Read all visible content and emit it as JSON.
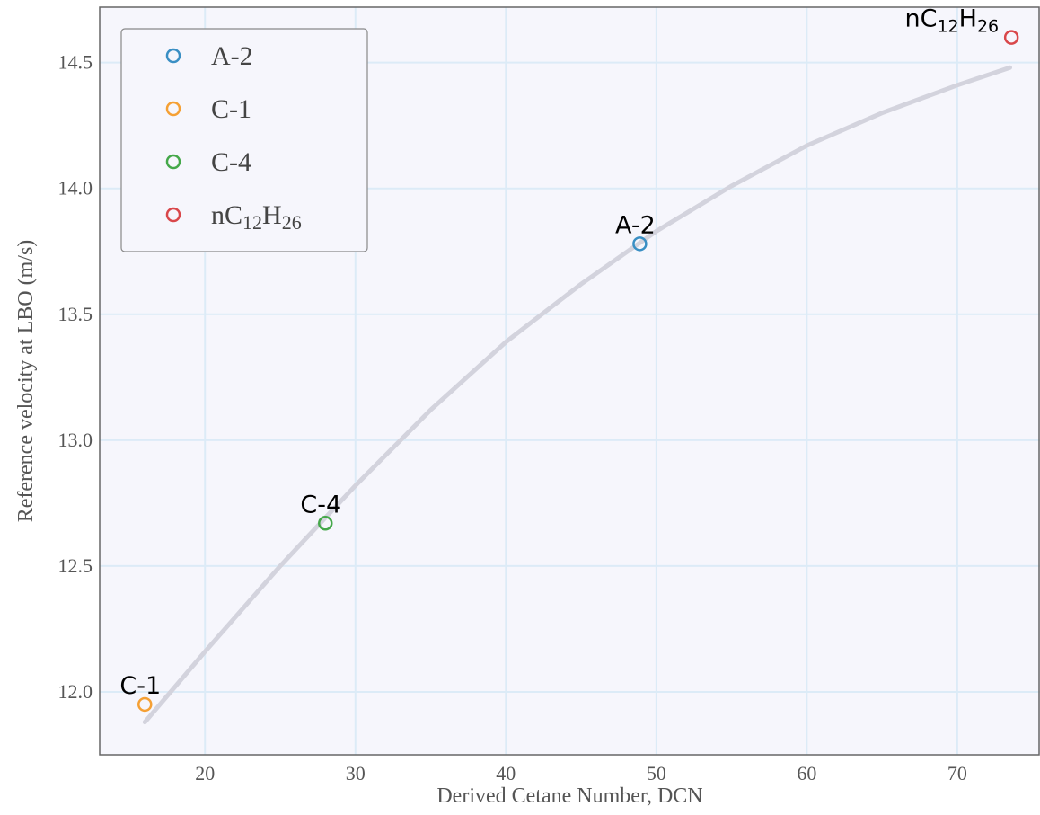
{
  "chart_data": {
    "type": "scatter",
    "title": "",
    "xlabel": "Derived Cetane Number, DCN",
    "ylabel": "Reference velocity at LBO (m/s)",
    "xlim": [
      13,
      75.5
    ],
    "ylim": [
      11.75,
      14.72
    ],
    "x_ticks": [
      20,
      30,
      40,
      50,
      60,
      70
    ],
    "y_ticks": [
      12.0,
      12.5,
      13.0,
      13.5,
      14.0,
      14.5
    ],
    "x_tick_labels": [
      "20",
      "30",
      "40",
      "50",
      "60",
      "70"
    ],
    "y_tick_labels": [
      "12.0",
      "12.5",
      "13.0",
      "13.5",
      "14.0",
      "14.5"
    ],
    "grid": true,
    "legend_position": "top-left",
    "series": [
      {
        "name": "A-2",
        "name_sub": [],
        "color": "#3a8fc4",
        "x": [
          48.9
        ],
        "y": [
          13.78
        ],
        "annotation": "A-2",
        "annotation_sub": []
      },
      {
        "name": "C-1",
        "name_sub": [],
        "color": "#f5a034",
        "x": [
          16.0
        ],
        "y": [
          11.95
        ],
        "annotation": "C-1",
        "annotation_sub": []
      },
      {
        "name": "C-4",
        "name_sub": [],
        "color": "#45a84a",
        "x": [
          28.0
        ],
        "y": [
          12.67
        ],
        "annotation": "C-4",
        "annotation_sub": []
      },
      {
        "name": "nC",
        "name_sub": [
          "12",
          "H",
          "26"
        ],
        "color": "#d9474a",
        "x": [
          73.6
        ],
        "y": [
          14.6
        ],
        "annotation": "nC",
        "annotation_sub": [
          "12",
          "H",
          "26"
        ]
      }
    ],
    "fit_curve": {
      "color": "#d3d3dd",
      "x": [
        16,
        20,
        25,
        30,
        35,
        40,
        45,
        50,
        55,
        60,
        65,
        70,
        73.5
      ],
      "y": [
        11.88,
        12.16,
        12.5,
        12.82,
        13.12,
        13.39,
        13.62,
        13.83,
        14.01,
        14.17,
        14.3,
        14.41,
        14.48
      ]
    }
  }
}
